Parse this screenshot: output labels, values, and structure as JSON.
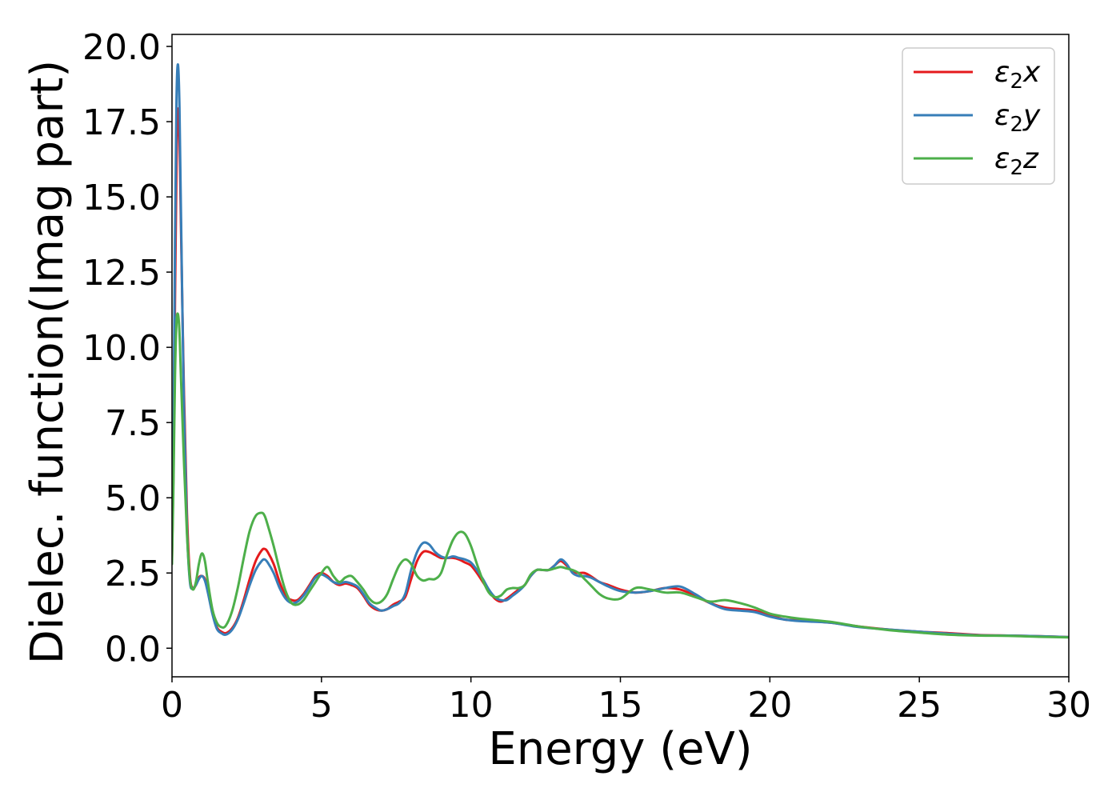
{
  "chart_data": {
    "type": "line",
    "title": "",
    "xlabel": "Energy (eV)",
    "ylabel": "Dielec. function(Imag part)",
    "xlim": [
      0,
      30
    ],
    "ylim": [
      -0.95,
      20.4
    ],
    "xticks": [
      0,
      5,
      10,
      15,
      20,
      25,
      30
    ],
    "xtick_labels": [
      "0",
      "5",
      "10",
      "15",
      "20",
      "25",
      "30"
    ],
    "yticks": [
      0,
      2.5,
      5,
      7.5,
      10,
      12.5,
      15,
      17.5,
      20
    ],
    "ytick_labels": [
      "0.0",
      "2.5",
      "5.0",
      "7.5",
      "10.0",
      "12.5",
      "15.0",
      "17.5",
      "20.0"
    ],
    "grid": false,
    "legend_position": "top-right",
    "series": [
      {
        "name": "ε2x",
        "legend_main": "ε",
        "legend_sub": "2",
        "legend_suffix": "x",
        "color": "#e41a1c",
        "x": [
          0,
          0.05,
          0.1,
          0.15,
          0.2,
          0.25,
          0.3,
          0.4,
          0.5,
          0.6,
          0.7,
          0.8,
          0.9,
          1.0,
          1.1,
          1.2,
          1.35,
          1.5,
          1.65,
          1.8,
          2.0,
          2.2,
          2.4,
          2.6,
          2.8,
          3.0,
          3.1,
          3.2,
          3.4,
          3.6,
          3.8,
          4.0,
          4.2,
          4.4,
          4.6,
          4.8,
          5.0,
          5.2,
          5.4,
          5.6,
          5.8,
          6.0,
          6.2,
          6.4,
          6.6,
          6.8,
          7.0,
          7.2,
          7.4,
          7.6,
          7.8,
          8.0,
          8.2,
          8.4,
          8.6,
          8.8,
          9.0,
          9.2,
          9.4,
          9.6,
          9.8,
          10.0,
          10.2,
          10.4,
          10.6,
          10.8,
          11.0,
          11.2,
          11.4,
          11.6,
          11.8,
          12.0,
          12.2,
          12.4,
          12.6,
          12.8,
          13.0,
          13.2,
          13.4,
          13.6,
          13.8,
          14.0,
          14.3,
          14.6,
          15.0,
          15.5,
          16.0,
          16.5,
          17.0,
          17.5,
          18.0,
          18.5,
          19.0,
          19.5,
          20.0,
          20.5,
          21.0,
          22.0,
          23.0,
          24.0,
          25.0,
          26.0,
          27.0,
          28.0,
          29.0,
          30.0
        ],
        "y": [
          3.0,
          6.0,
          11.5,
          16.0,
          17.9,
          17.0,
          14.0,
          8.5,
          4.5,
          2.4,
          2.0,
          2.1,
          2.35,
          2.4,
          2.3,
          1.9,
          1.2,
          0.7,
          0.55,
          0.5,
          0.65,
          1.0,
          1.6,
          2.3,
          2.9,
          3.25,
          3.3,
          3.2,
          2.8,
          2.2,
          1.75,
          1.6,
          1.6,
          1.8,
          2.1,
          2.4,
          2.5,
          2.4,
          2.2,
          2.1,
          2.15,
          2.1,
          2.0,
          1.75,
          1.45,
          1.3,
          1.25,
          1.3,
          1.45,
          1.55,
          1.7,
          2.3,
          2.9,
          3.2,
          3.2,
          3.1,
          3.0,
          3.0,
          3.0,
          2.95,
          2.85,
          2.75,
          2.5,
          2.2,
          1.9,
          1.65,
          1.55,
          1.65,
          1.8,
          1.95,
          2.1,
          2.4,
          2.6,
          2.6,
          2.6,
          2.75,
          2.9,
          2.75,
          2.55,
          2.5,
          2.5,
          2.4,
          2.2,
          2.1,
          1.95,
          1.85,
          1.9,
          2.0,
          1.95,
          1.75,
          1.5,
          1.35,
          1.3,
          1.25,
          1.1,
          0.95,
          0.93,
          0.85,
          0.72,
          0.62,
          0.55,
          0.5,
          0.44,
          0.42,
          0.4,
          0.37
        ]
      },
      {
        "name": "ε2y",
        "legend_main": "ε",
        "legend_sub": "2",
        "legend_suffix": "y",
        "color": "#377eb8",
        "x": [
          0,
          0.05,
          0.1,
          0.15,
          0.2,
          0.25,
          0.3,
          0.4,
          0.5,
          0.6,
          0.7,
          0.8,
          0.9,
          1.0,
          1.1,
          1.2,
          1.35,
          1.5,
          1.65,
          1.8,
          2.0,
          2.2,
          2.4,
          2.6,
          2.8,
          3.0,
          3.1,
          3.2,
          3.4,
          3.6,
          3.8,
          4.0,
          4.2,
          4.4,
          4.6,
          4.8,
          5.0,
          5.2,
          5.4,
          5.6,
          5.8,
          6.0,
          6.2,
          6.4,
          6.6,
          6.8,
          7.0,
          7.2,
          7.4,
          7.6,
          7.8,
          8.0,
          8.2,
          8.4,
          8.6,
          8.8,
          9.0,
          9.2,
          9.4,
          9.6,
          9.8,
          10.0,
          10.2,
          10.4,
          10.6,
          10.8,
          11.0,
          11.2,
          11.4,
          11.6,
          11.8,
          12.0,
          12.2,
          12.4,
          12.6,
          12.8,
          13.0,
          13.2,
          13.4,
          13.6,
          13.8,
          14.0,
          14.3,
          14.6,
          15.0,
          15.5,
          16.0,
          16.5,
          17.0,
          17.5,
          18.0,
          18.5,
          19.0,
          19.5,
          20.0,
          20.5,
          21.0,
          22.0,
          23.0,
          24.0,
          25.0,
          26.0,
          27.0,
          28.0,
          29.0,
          30.0
        ],
        "y": [
          3.2,
          7.0,
          13.5,
          18.2,
          19.4,
          18.0,
          14.5,
          8.0,
          4.0,
          2.2,
          2.0,
          2.1,
          2.3,
          2.4,
          2.25,
          1.85,
          1.15,
          0.65,
          0.5,
          0.45,
          0.6,
          0.95,
          1.5,
          2.1,
          2.6,
          2.9,
          2.95,
          2.85,
          2.5,
          2.0,
          1.65,
          1.5,
          1.55,
          1.75,
          2.05,
          2.35,
          2.45,
          2.35,
          2.2,
          2.15,
          2.2,
          2.15,
          2.05,
          1.8,
          1.5,
          1.35,
          1.25,
          1.3,
          1.4,
          1.5,
          1.8,
          2.6,
          3.2,
          3.5,
          3.45,
          3.2,
          3.05,
          3.0,
          3.05,
          3.0,
          2.95,
          2.85,
          2.6,
          2.3,
          1.95,
          1.7,
          1.6,
          1.6,
          1.75,
          1.9,
          2.1,
          2.4,
          2.6,
          2.6,
          2.6,
          2.75,
          2.95,
          2.8,
          2.5,
          2.4,
          2.4,
          2.35,
          2.2,
          2.05,
          1.9,
          1.85,
          1.9,
          2.0,
          2.05,
          1.8,
          1.5,
          1.3,
          1.25,
          1.2,
          1.05,
          0.95,
          0.9,
          0.85,
          0.7,
          0.62,
          0.55,
          0.48,
          0.43,
          0.42,
          0.4,
          0.37
        ]
      },
      {
        "name": "ε2z",
        "legend_main": "ε",
        "legend_sub": "2",
        "legend_suffix": "z",
        "color": "#4daf4a",
        "x": [
          0,
          0.05,
          0.1,
          0.15,
          0.2,
          0.25,
          0.3,
          0.4,
          0.5,
          0.6,
          0.7,
          0.8,
          0.9,
          1.0,
          1.1,
          1.2,
          1.35,
          1.5,
          1.65,
          1.8,
          2.0,
          2.2,
          2.4,
          2.6,
          2.8,
          3.0,
          3.1,
          3.2,
          3.4,
          3.6,
          3.8,
          4.0,
          4.2,
          4.4,
          4.6,
          4.8,
          5.0,
          5.2,
          5.4,
          5.6,
          5.8,
          6.0,
          6.2,
          6.4,
          6.6,
          6.8,
          7.0,
          7.2,
          7.4,
          7.6,
          7.8,
          8.0,
          8.2,
          8.4,
          8.6,
          8.8,
          9.0,
          9.2,
          9.4,
          9.6,
          9.8,
          10.0,
          10.2,
          10.4,
          10.6,
          10.8,
          11.0,
          11.2,
          11.4,
          11.6,
          11.8,
          12.0,
          12.2,
          12.4,
          12.6,
          12.8,
          13.0,
          13.2,
          13.4,
          13.6,
          13.8,
          14.0,
          14.3,
          14.6,
          15.0,
          15.5,
          16.0,
          16.5,
          17.0,
          17.5,
          18.0,
          18.5,
          19.0,
          19.5,
          20.0,
          20.5,
          21.0,
          22.0,
          23.0,
          24.0,
          25.0,
          26.0,
          27.0,
          28.0,
          29.0,
          30.0
        ],
        "y": [
          2.8,
          5.5,
          9.0,
          10.8,
          11.1,
          10.5,
          9.0,
          6.2,
          3.8,
          2.3,
          1.95,
          2.2,
          2.8,
          3.15,
          2.9,
          2.2,
          1.3,
          0.85,
          0.7,
          0.75,
          1.2,
          2.0,
          3.0,
          3.9,
          4.4,
          4.5,
          4.4,
          4.1,
          3.4,
          2.6,
          1.9,
          1.5,
          1.45,
          1.6,
          1.9,
          2.2,
          2.5,
          2.7,
          2.4,
          2.2,
          2.35,
          2.4,
          2.2,
          1.95,
          1.65,
          1.5,
          1.55,
          1.8,
          2.3,
          2.75,
          2.95,
          2.8,
          2.4,
          2.25,
          2.3,
          2.3,
          2.5,
          3.1,
          3.6,
          3.85,
          3.8,
          3.4,
          2.8,
          2.25,
          1.85,
          1.7,
          1.75,
          1.95,
          2.0,
          2.0,
          2.1,
          2.45,
          2.6,
          2.6,
          2.6,
          2.65,
          2.7,
          2.65,
          2.6,
          2.5,
          2.3,
          2.1,
          1.8,
          1.65,
          1.65,
          2.0,
          1.95,
          1.85,
          1.85,
          1.7,
          1.55,
          1.6,
          1.5,
          1.35,
          1.15,
          1.05,
          0.98,
          0.88,
          0.72,
          0.6,
          0.52,
          0.45,
          0.42,
          0.41,
          0.38,
          0.36
        ]
      }
    ]
  }
}
